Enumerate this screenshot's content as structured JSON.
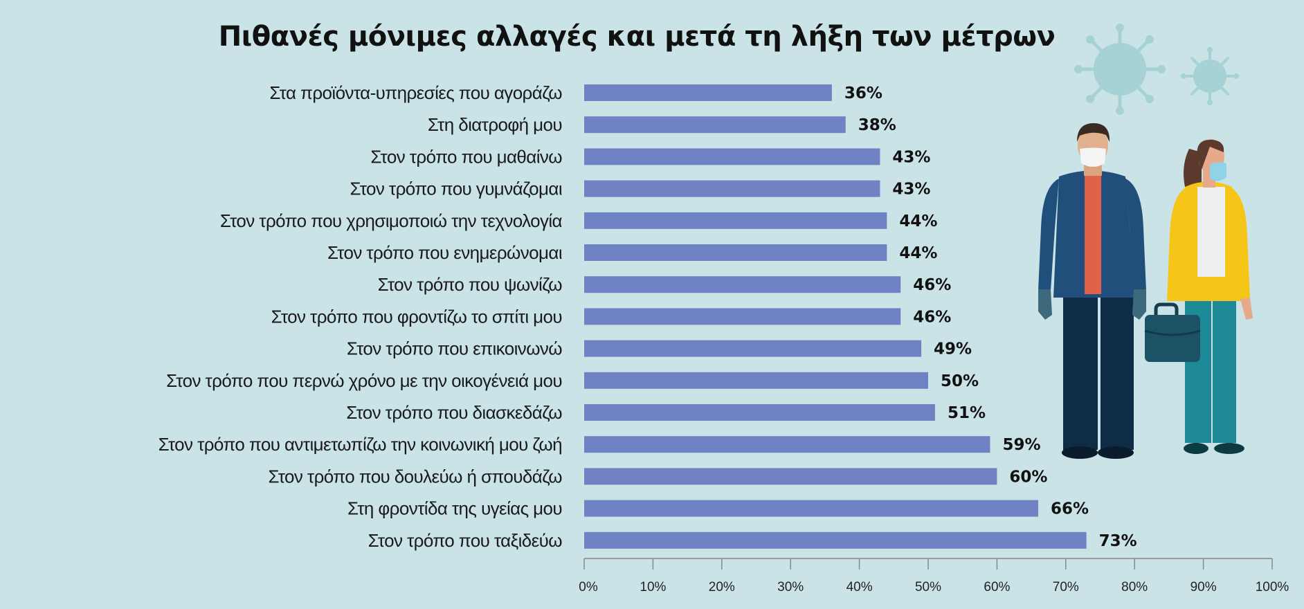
{
  "chart_data": {
    "type": "bar",
    "orientation": "horizontal",
    "title": "Πιθανές μόνιμες αλλαγές και μετά τη λήξη των μέτρων",
    "categories": [
      "Στα προϊόντα-υπηρεσίες που αγοράζω",
      "Στη διατροφή μου",
      "Στον τρόπο που μαθαίνω",
      "Στον τρόπο που γυμνάζομαι",
      "Στον τρόπο που χρησιμοποιώ την τεχνολογία",
      "Στον τρόπο που ενημερώνομαι",
      "Στον τρόπο που ψωνίζω",
      "Στον τρόπο που φροντίζω το σπίτι μου",
      "Στον τρόπο που επικοινωνώ",
      "Στον τρόπο που περνώ χρόνο με την οικογένειά μου",
      "Στον τρόπο που διασκεδάζω",
      "Στον τρόπο που αντιμετωπίζω την κοινωνική μου ζωή",
      "Στον τρόπο που δουλεύω ή σπουδάζω",
      "Στη φροντίδα της υγείας μου",
      "Στον τρόπο που ταξιδεύω"
    ],
    "values": [
      36,
      38,
      43,
      43,
      44,
      44,
      46,
      46,
      49,
      50,
      51,
      59,
      60,
      66,
      73
    ],
    "value_labels": [
      "36%",
      "38%",
      "43%",
      "43%",
      "44%",
      "44%",
      "46%",
      "46%",
      "49%",
      "50%",
      "51%",
      "59%",
      "60%",
      "66%",
      "73%"
    ],
    "xlim": [
      0,
      100
    ],
    "xticks": [
      0,
      10,
      20,
      30,
      40,
      50,
      60,
      70,
      80,
      90,
      100
    ],
    "xtick_labels": [
      "0%",
      "10%",
      "20%",
      "30%",
      "40%",
      "50%",
      "60%",
      "70%",
      "80%",
      "90%",
      "100%"
    ],
    "grid": false,
    "legend": "none",
    "bar_color": "#6e82c4"
  },
  "colors": {
    "background": "#c9e3e6",
    "bar": "#6e82c4",
    "axis": "#888888",
    "virus": "#9fcfd4"
  },
  "illustration": {
    "icons": [
      "virus-icon",
      "man-with-mask-icon",
      "woman-with-mask-icon",
      "briefcase-icon"
    ]
  }
}
